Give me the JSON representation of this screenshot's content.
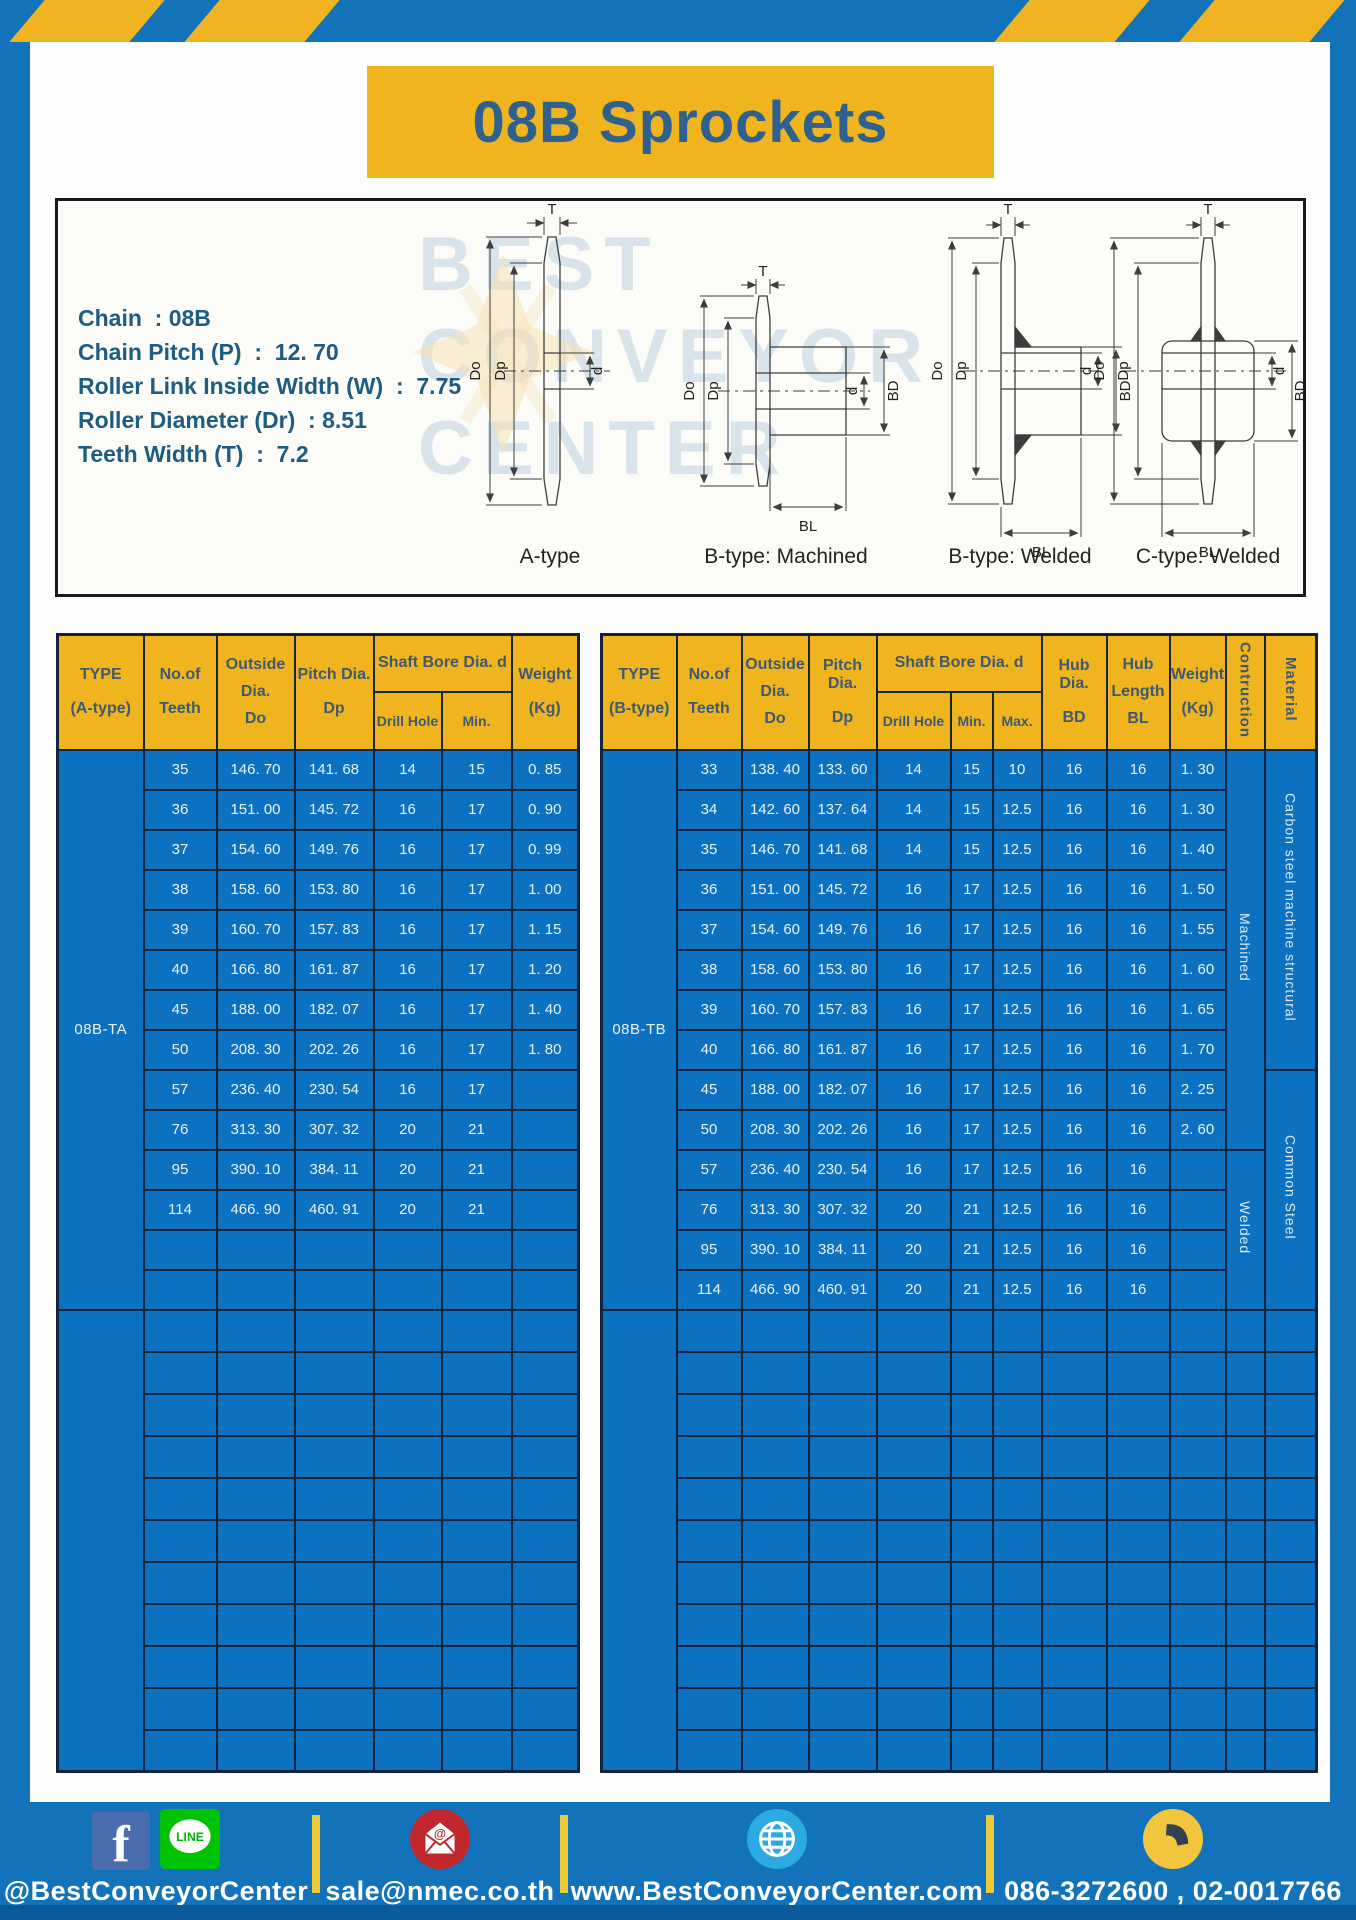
{
  "title": "08B Sprockets",
  "specs": {
    "lines": [
      "Chain  : 08B",
      "Chain Pitch (P)  :  12. 70",
      "Roller Link Inside Width (W)  :  7.75",
      "Roller Diameter (Dr)  : 8.51",
      "Teeth Width (T)  :  7.2"
    ]
  },
  "diagrams": {
    "captions": [
      "A-type",
      "B-type: Machined",
      "B-type: Welded",
      "C-type: Welded"
    ],
    "dim_labels": {
      "t": "T",
      "do": "Do",
      "dp": "Dp",
      "d": "d",
      "bd": "BD",
      "bl": "BL"
    },
    "watermark": [
      "BEST",
      "CONVEYOR",
      "CENTER"
    ]
  },
  "left_table": {
    "header": {
      "type": [
        "TYPE",
        "(A-type)"
      ],
      "no_of_teeth": [
        "No.of",
        "Teeth"
      ],
      "outside_dia": [
        "Outside",
        "Dia.",
        "Do"
      ],
      "pitch_dia": [
        "Pitch Dia.",
        "Dp"
      ],
      "shaft_bore": "Shaft Bore Dia. d",
      "drill_hole": "Drill Hole",
      "min": "Min.",
      "weight": [
        "Weight",
        "(Kg)"
      ]
    },
    "type_value": "08B-TA",
    "rows": [
      [
        "35",
        "146. 70",
        "141. 68",
        "14",
        "15",
        "0. 85"
      ],
      [
        "36",
        "151. 00",
        "145. 72",
        "16",
        "17",
        "0. 90"
      ],
      [
        "37",
        "154. 60",
        "149. 76",
        "16",
        "17",
        "0. 99"
      ],
      [
        "38",
        "158. 60",
        "153. 80",
        "16",
        "17",
        "1. 00"
      ],
      [
        "39",
        "160. 70",
        "157. 83",
        "16",
        "17",
        "1. 15"
      ],
      [
        "40",
        "166. 80",
        "161. 87",
        "16",
        "17",
        "1. 20"
      ],
      [
        "45",
        "188. 00",
        "182. 07",
        "16",
        "17",
        "1. 40"
      ],
      [
        "50",
        "208. 30",
        "202. 26",
        "16",
        "17",
        "1. 80"
      ],
      [
        "57",
        "236. 40",
        "230. 54",
        "16",
        "17",
        ""
      ],
      [
        "76",
        "313. 30",
        "307. 32",
        "20",
        "21",
        ""
      ],
      [
        "95",
        "390. 10",
        "384. 11",
        "20",
        "21",
        ""
      ],
      [
        "114",
        "466. 90",
        "460. 91",
        "20",
        "21",
        ""
      ]
    ],
    "empty_rows_section1": 2,
    "empty_rows_section2": 11
  },
  "right_table": {
    "header": {
      "type": [
        "TYPE",
        "(B-type)"
      ],
      "no_of_teeth": [
        "No.of",
        "Teeth"
      ],
      "outside_dia": [
        "Outside",
        "Dia.",
        "Do"
      ],
      "pitch_dia": [
        "Pitch Dia.",
        "Dp"
      ],
      "shaft_bore": "Shaft Bore Dia. d",
      "drill_hole": "Drill Hole",
      "min": "Min.",
      "max": "Max.",
      "hub_dia": [
        "Hub Dia.",
        "BD"
      ],
      "hub_length": [
        "Hub",
        "Length",
        "BL"
      ],
      "weight": [
        "Weight",
        "(Kg)"
      ],
      "contruction": "Contruction",
      "material": "Material"
    },
    "type_value": "08B-TB",
    "rows": [
      [
        "33",
        "138. 40",
        "133. 60",
        "14",
        "15",
        "10",
        "16",
        "16",
        "1. 30"
      ],
      [
        "34",
        "142. 60",
        "137. 64",
        "14",
        "15",
        "12.5",
        "16",
        "16",
        "1. 30"
      ],
      [
        "35",
        "146. 70",
        "141. 68",
        "14",
        "15",
        "12.5",
        "16",
        "16",
        "1. 40"
      ],
      [
        "36",
        "151. 00",
        "145. 72",
        "16",
        "17",
        "12.5",
        "16",
        "16",
        "1. 50"
      ],
      [
        "37",
        "154. 60",
        "149. 76",
        "16",
        "17",
        "12.5",
        "16",
        "16",
        "1. 55"
      ],
      [
        "38",
        "158. 60",
        "153. 80",
        "16",
        "17",
        "12.5",
        "16",
        "16",
        "1. 60"
      ],
      [
        "39",
        "160. 70",
        "157. 83",
        "16",
        "17",
        "12.5",
        "16",
        "16",
        "1. 65"
      ],
      [
        "40",
        "166. 80",
        "161. 87",
        "16",
        "17",
        "12.5",
        "16",
        "16",
        "1. 70"
      ],
      [
        "45",
        "188. 00",
        "182. 07",
        "16",
        "17",
        "12.5",
        "16",
        "16",
        "2. 25"
      ],
      [
        "50",
        "208. 30",
        "202. 26",
        "16",
        "17",
        "12.5",
        "16",
        "16",
        "2. 60"
      ],
      [
        "57",
        "236. 40",
        "230. 54",
        "16",
        "17",
        "12.5",
        "16",
        "16",
        ""
      ],
      [
        "76",
        "313. 30",
        "307. 32",
        "20",
        "21",
        "12.5",
        "16",
        "16",
        ""
      ],
      [
        "95",
        "390. 10",
        "384. 11",
        "20",
        "21",
        "12.5",
        "16",
        "16",
        ""
      ],
      [
        "114",
        "466. 90",
        "460. 91",
        "20",
        "21",
        "12.5",
        "16",
        "16",
        ""
      ]
    ],
    "construction_groups": [
      {
        "label": "Machined",
        "rows": 10
      },
      {
        "label": "Welded",
        "rows": 4
      }
    ],
    "material_groups": [
      {
        "label": "Carbon steel  machine  structural",
        "rows": 8
      },
      {
        "label": "Common  Steel",
        "rows": 6
      }
    ],
    "empty_rows_section2": 11
  },
  "footer": {
    "sections": [
      {
        "icons": [
          "facebook-icon",
          "line-icon"
        ],
        "label": "@BestConveyorCenter"
      },
      {
        "icons": [
          "email-icon"
        ],
        "label": "sale@nmec.co.th"
      },
      {
        "icons": [
          "globe-icon"
        ],
        "label": "www.BestConveyorCenter.com"
      },
      {
        "icons": [
          "phone-icon"
        ],
        "label": "086-3272600 , 02-0017766"
      }
    ]
  },
  "colors": {
    "band_blue": "#1273ba",
    "cell_blue": "#0d71c2",
    "header_yellow": "#f0b41e",
    "stripe_yellow": "#f0b322",
    "border_navy": "#12233a",
    "title_text": "#2e6090",
    "spec_text": "#1e5c80",
    "footer_strip": "#0b5b9b",
    "divider_yellow": "#ecc937"
  }
}
